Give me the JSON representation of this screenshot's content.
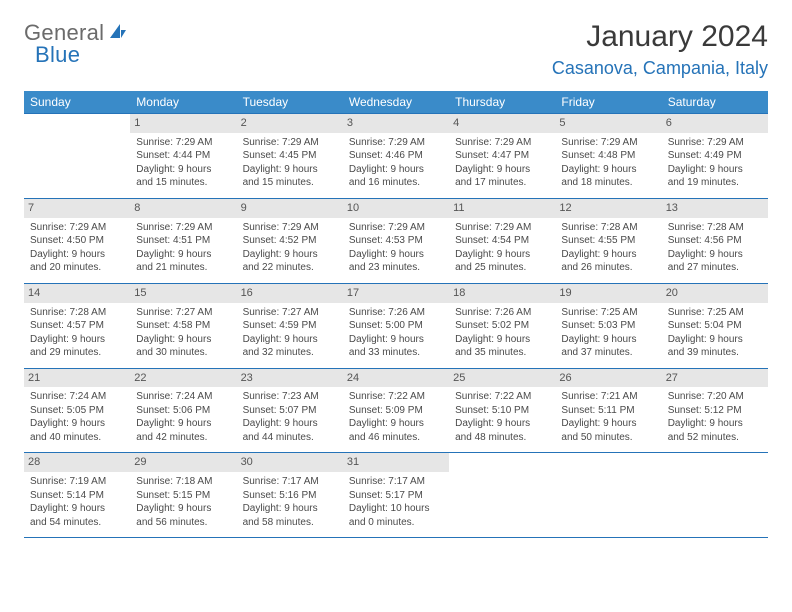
{
  "logo": {
    "text1": "General",
    "text2": "Blue"
  },
  "title": "January 2024",
  "location": "Casanova, Campania, Italy",
  "day_headers": [
    "Sunday",
    "Monday",
    "Tuesday",
    "Wednesday",
    "Thursday",
    "Friday",
    "Saturday"
  ],
  "colors": {
    "header_bg": "#3a8bc9",
    "accent": "#2573b8",
    "daynum_bg": "#e6e6e6",
    "text": "#4a4a4a"
  },
  "weeks": [
    [
      {
        "num": "",
        "lines": []
      },
      {
        "num": "1",
        "lines": [
          "Sunrise: 7:29 AM",
          "Sunset: 4:44 PM",
          "Daylight: 9 hours and 15 minutes."
        ]
      },
      {
        "num": "2",
        "lines": [
          "Sunrise: 7:29 AM",
          "Sunset: 4:45 PM",
          "Daylight: 9 hours and 15 minutes."
        ]
      },
      {
        "num": "3",
        "lines": [
          "Sunrise: 7:29 AM",
          "Sunset: 4:46 PM",
          "Daylight: 9 hours and 16 minutes."
        ]
      },
      {
        "num": "4",
        "lines": [
          "Sunrise: 7:29 AM",
          "Sunset: 4:47 PM",
          "Daylight: 9 hours and 17 minutes."
        ]
      },
      {
        "num": "5",
        "lines": [
          "Sunrise: 7:29 AM",
          "Sunset: 4:48 PM",
          "Daylight: 9 hours and 18 minutes."
        ]
      },
      {
        "num": "6",
        "lines": [
          "Sunrise: 7:29 AM",
          "Sunset: 4:49 PM",
          "Daylight: 9 hours and 19 minutes."
        ]
      }
    ],
    [
      {
        "num": "7",
        "lines": [
          "Sunrise: 7:29 AM",
          "Sunset: 4:50 PM",
          "Daylight: 9 hours and 20 minutes."
        ]
      },
      {
        "num": "8",
        "lines": [
          "Sunrise: 7:29 AM",
          "Sunset: 4:51 PM",
          "Daylight: 9 hours and 21 minutes."
        ]
      },
      {
        "num": "9",
        "lines": [
          "Sunrise: 7:29 AM",
          "Sunset: 4:52 PM",
          "Daylight: 9 hours and 22 minutes."
        ]
      },
      {
        "num": "10",
        "lines": [
          "Sunrise: 7:29 AM",
          "Sunset: 4:53 PM",
          "Daylight: 9 hours and 23 minutes."
        ]
      },
      {
        "num": "11",
        "lines": [
          "Sunrise: 7:29 AM",
          "Sunset: 4:54 PM",
          "Daylight: 9 hours and 25 minutes."
        ]
      },
      {
        "num": "12",
        "lines": [
          "Sunrise: 7:28 AM",
          "Sunset: 4:55 PM",
          "Daylight: 9 hours and 26 minutes."
        ]
      },
      {
        "num": "13",
        "lines": [
          "Sunrise: 7:28 AM",
          "Sunset: 4:56 PM",
          "Daylight: 9 hours and 27 minutes."
        ]
      }
    ],
    [
      {
        "num": "14",
        "lines": [
          "Sunrise: 7:28 AM",
          "Sunset: 4:57 PM",
          "Daylight: 9 hours and 29 minutes."
        ]
      },
      {
        "num": "15",
        "lines": [
          "Sunrise: 7:27 AM",
          "Sunset: 4:58 PM",
          "Daylight: 9 hours and 30 minutes."
        ]
      },
      {
        "num": "16",
        "lines": [
          "Sunrise: 7:27 AM",
          "Sunset: 4:59 PM",
          "Daylight: 9 hours and 32 minutes."
        ]
      },
      {
        "num": "17",
        "lines": [
          "Sunrise: 7:26 AM",
          "Sunset: 5:00 PM",
          "Daylight: 9 hours and 33 minutes."
        ]
      },
      {
        "num": "18",
        "lines": [
          "Sunrise: 7:26 AM",
          "Sunset: 5:02 PM",
          "Daylight: 9 hours and 35 minutes."
        ]
      },
      {
        "num": "19",
        "lines": [
          "Sunrise: 7:25 AM",
          "Sunset: 5:03 PM",
          "Daylight: 9 hours and 37 minutes."
        ]
      },
      {
        "num": "20",
        "lines": [
          "Sunrise: 7:25 AM",
          "Sunset: 5:04 PM",
          "Daylight: 9 hours and 39 minutes."
        ]
      }
    ],
    [
      {
        "num": "21",
        "lines": [
          "Sunrise: 7:24 AM",
          "Sunset: 5:05 PM",
          "Daylight: 9 hours and 40 minutes."
        ]
      },
      {
        "num": "22",
        "lines": [
          "Sunrise: 7:24 AM",
          "Sunset: 5:06 PM",
          "Daylight: 9 hours and 42 minutes."
        ]
      },
      {
        "num": "23",
        "lines": [
          "Sunrise: 7:23 AM",
          "Sunset: 5:07 PM",
          "Daylight: 9 hours and 44 minutes."
        ]
      },
      {
        "num": "24",
        "lines": [
          "Sunrise: 7:22 AM",
          "Sunset: 5:09 PM",
          "Daylight: 9 hours and 46 minutes."
        ]
      },
      {
        "num": "25",
        "lines": [
          "Sunrise: 7:22 AM",
          "Sunset: 5:10 PM",
          "Daylight: 9 hours and 48 minutes."
        ]
      },
      {
        "num": "26",
        "lines": [
          "Sunrise: 7:21 AM",
          "Sunset: 5:11 PM",
          "Daylight: 9 hours and 50 minutes."
        ]
      },
      {
        "num": "27",
        "lines": [
          "Sunrise: 7:20 AM",
          "Sunset: 5:12 PM",
          "Daylight: 9 hours and 52 minutes."
        ]
      }
    ],
    [
      {
        "num": "28",
        "lines": [
          "Sunrise: 7:19 AM",
          "Sunset: 5:14 PM",
          "Daylight: 9 hours and 54 minutes."
        ]
      },
      {
        "num": "29",
        "lines": [
          "Sunrise: 7:18 AM",
          "Sunset: 5:15 PM",
          "Daylight: 9 hours and 56 minutes."
        ]
      },
      {
        "num": "30",
        "lines": [
          "Sunrise: 7:17 AM",
          "Sunset: 5:16 PM",
          "Daylight: 9 hours and 58 minutes."
        ]
      },
      {
        "num": "31",
        "lines": [
          "Sunrise: 7:17 AM",
          "Sunset: 5:17 PM",
          "Daylight: 10 hours and 0 minutes."
        ]
      },
      {
        "num": "",
        "lines": []
      },
      {
        "num": "",
        "lines": []
      },
      {
        "num": "",
        "lines": []
      }
    ]
  ]
}
